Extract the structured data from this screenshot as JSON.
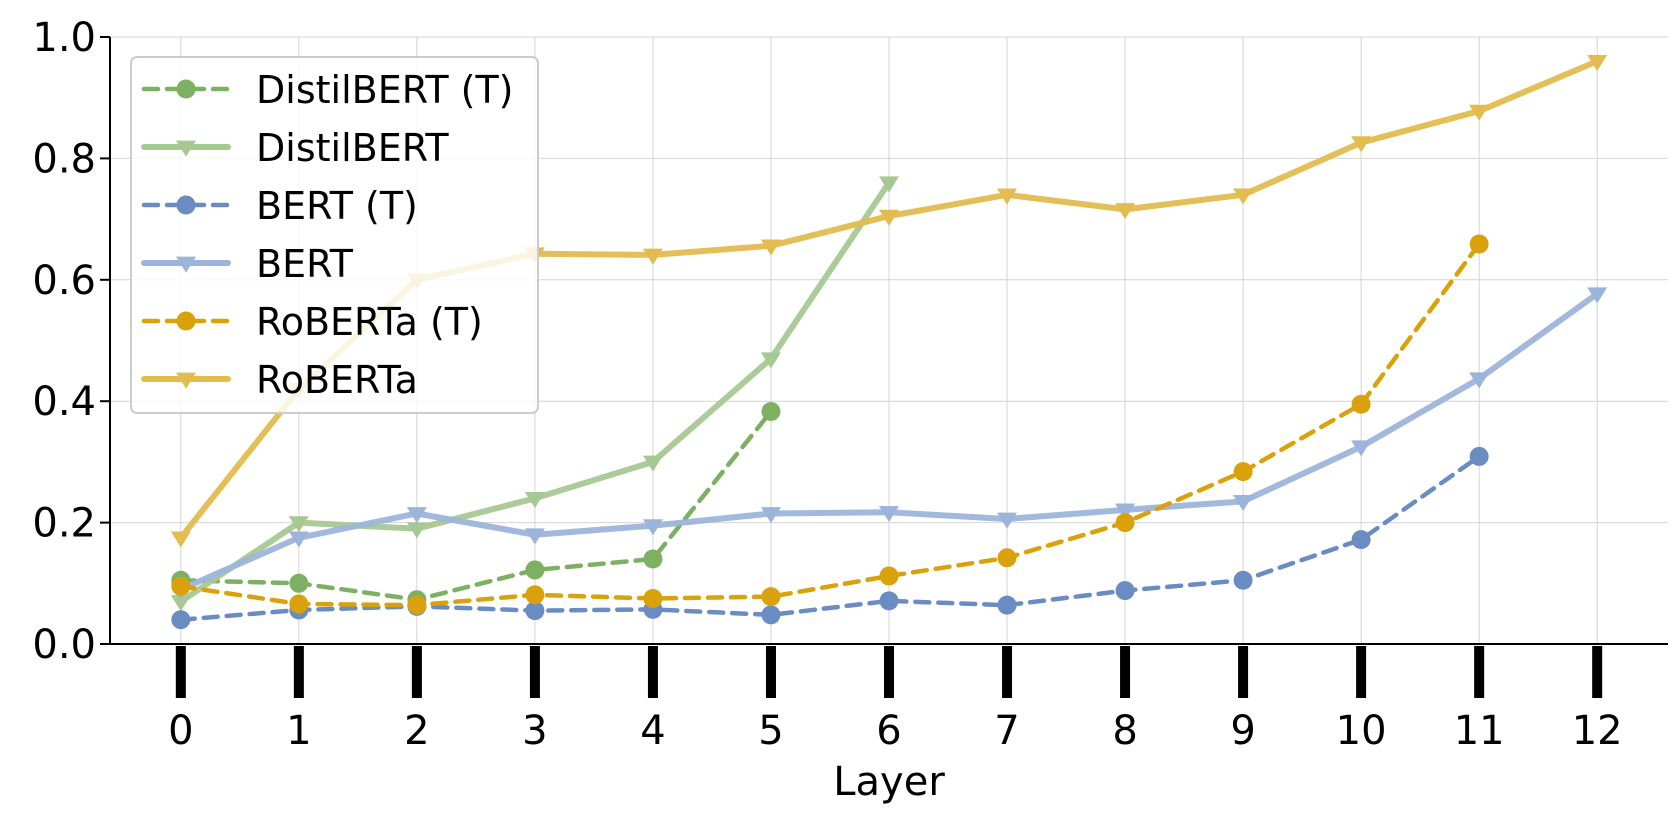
{
  "chart_data": {
    "type": "line",
    "title": "",
    "xlabel": "Layer",
    "ylabel": "",
    "xlim": [
      -0.6,
      12.6
    ],
    "ylim": [
      0.0,
      1.0
    ],
    "x_ticks": [
      "0",
      "1",
      "2",
      "3",
      "4",
      "5",
      "6",
      "7",
      "8",
      "9",
      "10",
      "11",
      "12"
    ],
    "y_ticks": [
      "0.0",
      "0.2",
      "0.4",
      "0.6",
      "0.8",
      "1.0"
    ],
    "grid": true,
    "legend_position": "top-left",
    "series": [
      {
        "name": "DistilBERT (T)",
        "color": "#7eb063",
        "style": "dashed",
        "marker": "circle",
        "x": [
          0,
          1,
          2,
          3,
          4,
          5
        ],
        "values": [
          0.105,
          0.1,
          0.073,
          0.122,
          0.14,
          0.383
        ]
      },
      {
        "name": "DistilBERT",
        "color": "#a6c994",
        "style": "solid",
        "marker": "triangle-down",
        "x": [
          0,
          1,
          2,
          3,
          4,
          5,
          6
        ],
        "values": [
          0.07,
          0.2,
          0.19,
          0.24,
          0.3,
          0.47,
          0.76
        ]
      },
      {
        "name": "BERT (T)",
        "color": "#6a8cc2",
        "style": "dashed",
        "marker": "circle",
        "x": [
          0,
          1,
          2,
          3,
          4,
          5,
          6,
          7,
          8,
          9,
          10,
          11
        ],
        "values": [
          0.04,
          0.056,
          0.062,
          0.055,
          0.057,
          0.048,
          0.071,
          0.064,
          0.088,
          0.105,
          0.172,
          0.309
        ]
      },
      {
        "name": "BERT",
        "color": "#9db4da",
        "style": "solid",
        "marker": "triangle-down",
        "x": [
          0,
          1,
          2,
          3,
          4,
          5,
          6,
          7,
          8,
          9,
          10,
          11,
          12
        ],
        "values": [
          0.09,
          0.175,
          0.215,
          0.18,
          0.195,
          0.215,
          0.217,
          0.206,
          0.221,
          0.235,
          0.325,
          0.437,
          0.577
        ]
      },
      {
        "name": "RoBERTa (T)",
        "color": "#d9a20a",
        "style": "dashed",
        "marker": "circle",
        "x": [
          0,
          1,
          2,
          3,
          4,
          5,
          6,
          7,
          8,
          9,
          10,
          11
        ],
        "values": [
          0.095,
          0.066,
          0.064,
          0.081,
          0.075,
          0.078,
          0.112,
          0.142,
          0.2,
          0.284,
          0.395,
          0.659
        ]
      },
      {
        "name": "RoBERTa",
        "color": "#e3bc4f",
        "style": "solid",
        "marker": "triangle-down",
        "x": [
          0,
          1,
          2,
          3,
          4,
          5,
          6,
          7,
          8,
          9,
          10,
          11,
          12
        ],
        "values": [
          0.175,
          0.42,
          0.6,
          0.643,
          0.641,
          0.656,
          0.705,
          0.74,
          0.716,
          0.74,
          0.826,
          0.878,
          0.96
        ]
      }
    ]
  }
}
